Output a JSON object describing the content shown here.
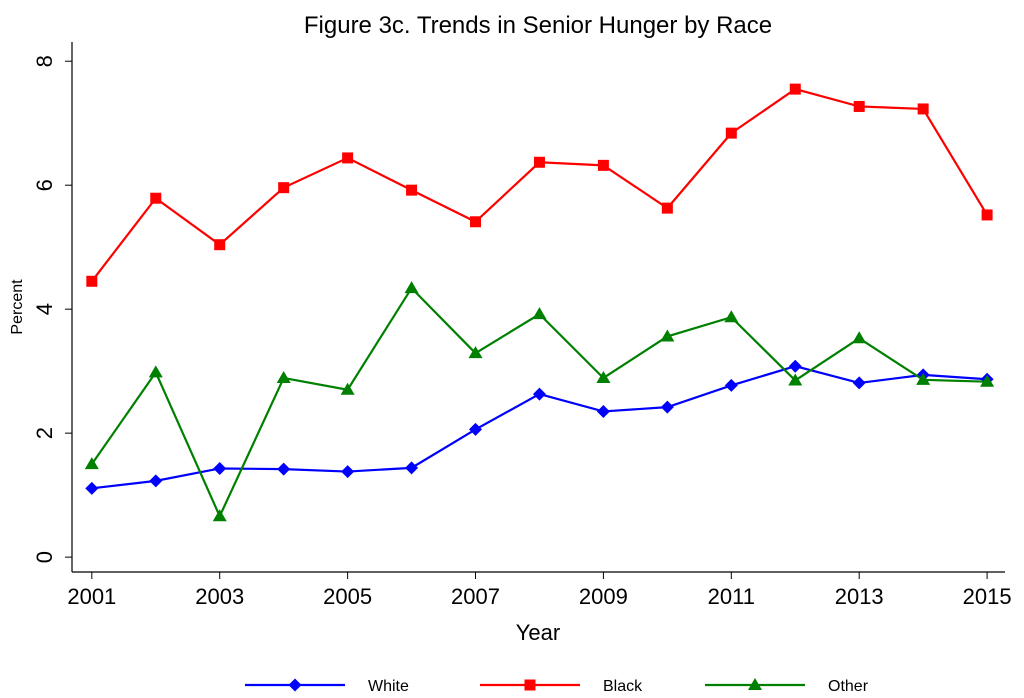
{
  "chart_data": {
    "type": "line",
    "title": "Figure 3c.  Trends in Senior Hunger by Race",
    "x_label": "Year",
    "y_label": "Percent",
    "x": [
      2001,
      2002,
      2003,
      2004,
      2005,
      2006,
      2007,
      2008,
      2009,
      2010,
      2011,
      2012,
      2013,
      2014,
      2015
    ],
    "series": [
      {
        "name": "White",
        "color": "#0000ff",
        "marker": "diamond",
        "values": [
          1.11,
          1.23,
          1.43,
          1.42,
          1.38,
          1.44,
          2.06,
          2.63,
          2.35,
          2.42,
          2.77,
          3.08,
          2.81,
          2.94,
          2.87
        ]
      },
      {
        "name": "Black",
        "color": "#ff0000",
        "marker": "square",
        "values": [
          4.45,
          5.79,
          5.04,
          5.96,
          6.44,
          5.92,
          5.41,
          6.37,
          6.32,
          5.63,
          6.84,
          7.55,
          7.27,
          7.23,
          5.52
        ]
      },
      {
        "name": "Other",
        "color": "#008000",
        "marker": "triangle",
        "values": [
          1.5,
          2.98,
          0.66,
          2.89,
          2.7,
          4.34,
          3.29,
          3.92,
          2.89,
          3.56,
          3.87,
          2.85,
          3.53,
          2.86,
          2.83
        ]
      }
    ],
    "xlim": [
      2000.69,
      2015.28
    ],
    "xticks": [
      2001,
      2003,
      2005,
      2007,
      2009,
      2011,
      2013,
      2015
    ],
    "ylim": [
      -0.24,
      8.31
    ],
    "yticks": [
      0,
      2,
      4,
      6,
      8
    ],
    "legend": "bottom",
    "grid": false
  }
}
